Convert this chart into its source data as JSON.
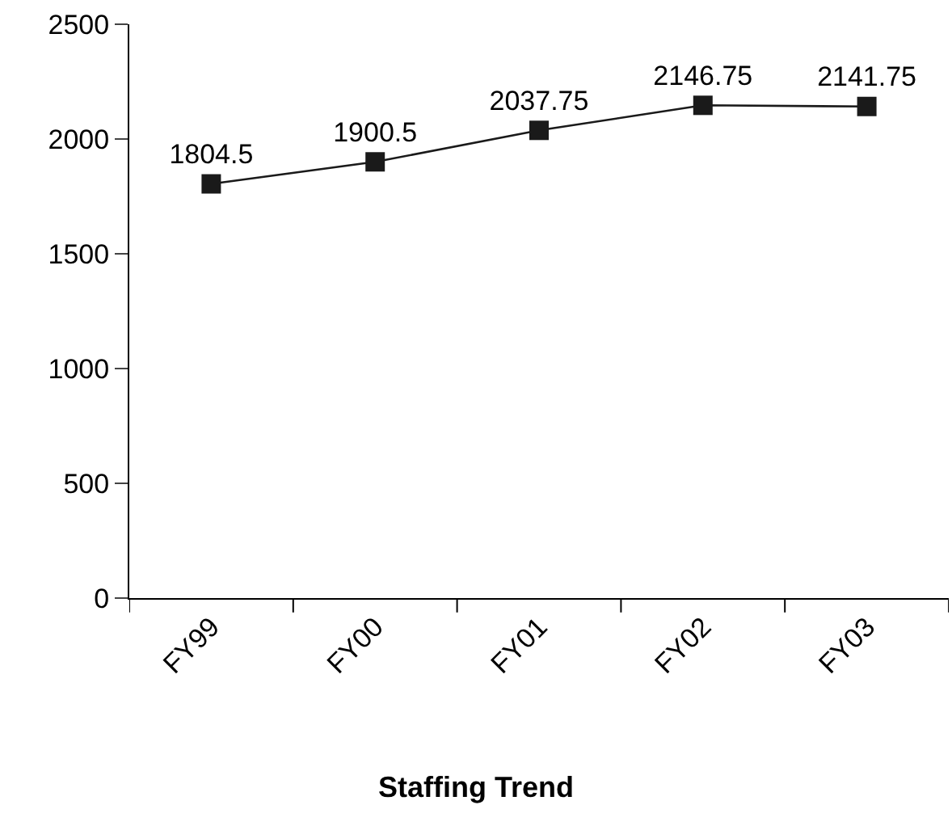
{
  "chart_data": {
    "type": "line",
    "title": "Staffing Trend",
    "categories": [
      "FY99",
      "FY00",
      "FY01",
      "FY02",
      "FY03"
    ],
    "series": [
      {
        "color": "#1a1a1a",
        "values": [
          1804.5,
          1900.5,
          2037.75,
          2146.75,
          2141.75
        ]
      }
    ],
    "ylim": [
      0,
      2500
    ],
    "yticks": [
      0,
      500,
      1000,
      1500,
      2000,
      2500
    ],
    "data_labels": true,
    "marker": "square",
    "line_style": "solid"
  }
}
